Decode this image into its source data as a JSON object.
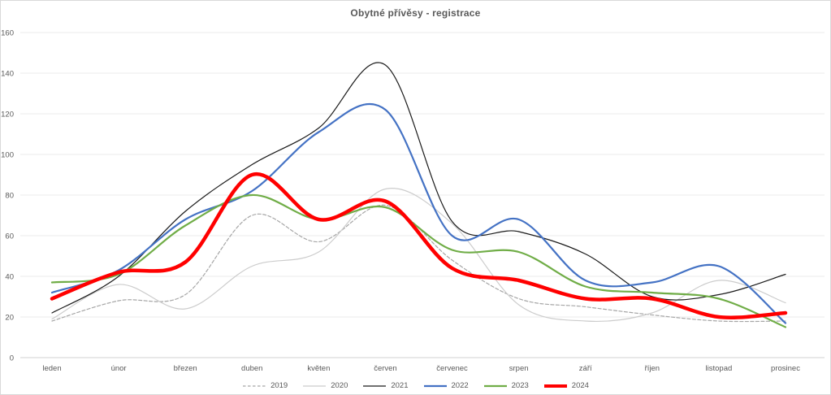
{
  "title": "Obytné přívěsy - registrace",
  "chart_data": {
    "type": "line",
    "title": "Obytné přívěsy - registrace",
    "categories": [
      "leden",
      "únor",
      "březen",
      "duben",
      "květen",
      "červen",
      "červenec",
      "srpen",
      "září",
      "říjen",
      "listopad",
      "prosinec"
    ],
    "series": [
      {
        "name": "2019",
        "color": "#a6a6a6",
        "style": "dashed",
        "width": 1.2,
        "values": [
          18,
          28,
          31,
          70,
          57,
          75,
          48,
          29,
          25,
          21,
          18,
          18
        ]
      },
      {
        "name": "2020",
        "color": "#cccccc",
        "style": "solid",
        "width": 1.2,
        "values": [
          19,
          36,
          24,
          45,
          52,
          83,
          66,
          26,
          18,
          22,
          38,
          27
        ]
      },
      {
        "name": "2021",
        "color": "#1a1a1a",
        "style": "solid",
        "width": 1.2,
        "values": [
          22,
          40,
          72,
          95,
          113,
          144,
          67,
          62,
          51,
          30,
          31,
          41
        ]
      },
      {
        "name": "2022",
        "color": "#4472c4",
        "style": "solid",
        "width": 2.2,
        "values": [
          32,
          43,
          68,
          82,
          111,
          122,
          60,
          68,
          38,
          37,
          45,
          17
        ]
      },
      {
        "name": "2023",
        "color": "#70ad47",
        "style": "solid",
        "width": 2.2,
        "values": [
          37,
          41,
          65,
          80,
          68,
          74,
          53,
          52,
          35,
          32,
          29,
          15
        ]
      },
      {
        "name": "2024",
        "color": "#ff0000",
        "style": "solid",
        "width": 4.5,
        "values": [
          29,
          42,
          47,
          90,
          68,
          77,
          44,
          38,
          29,
          29,
          20,
          22
        ]
      }
    ],
    "xlabel": "",
    "ylabel": "",
    "ylim": [
      0,
      160
    ],
    "ytick_step": 20,
    "grid": true,
    "smooth": true,
    "legend_position": "bottom"
  }
}
